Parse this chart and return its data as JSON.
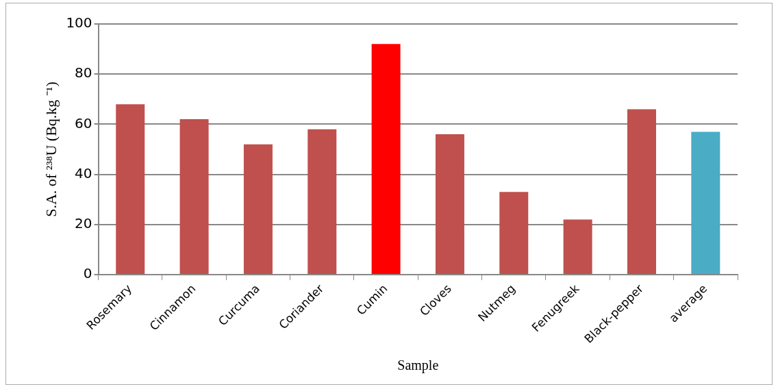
{
  "chart_data": {
    "type": "bar",
    "xlabel": "Sample",
    "ylabel": "S.A. of ²³⁸U (Bq.kg ⁻¹)",
    "categories": [
      "Rosemary",
      "Cinnamon",
      "Curcuma",
      "Coriander",
      "Cumin",
      "Cloves",
      "Nutmeg",
      "Fenugreek",
      "Black-pepper",
      "average"
    ],
    "values": [
      68,
      62,
      52,
      58,
      92,
      56,
      33,
      22,
      66,
      57
    ],
    "colors": [
      "#c0504d",
      "#c0504d",
      "#c0504d",
      "#c0504d",
      "#ff0000",
      "#c0504d",
      "#c0504d",
      "#c0504d",
      "#c0504d",
      "#4bacc6"
    ],
    "ylim": [
      0,
      100
    ],
    "yticks": [
      0,
      20,
      40,
      60,
      80,
      100
    ],
    "grid": "y",
    "legend": false
  }
}
